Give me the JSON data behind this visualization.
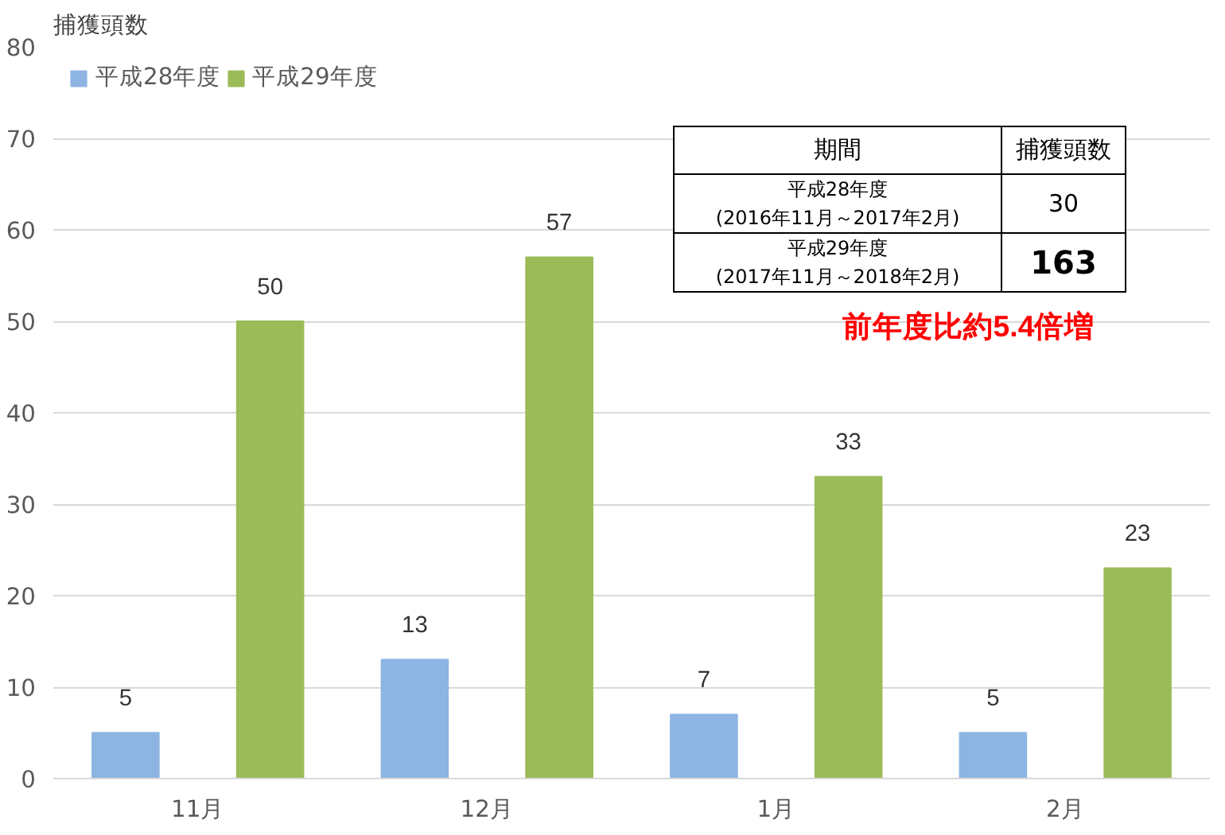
{
  "chart_data": {
    "type": "bar",
    "ylabel": "捕獲頭数",
    "categories": [
      "11月",
      "12月",
      "1月",
      "2月"
    ],
    "series": [
      {
        "name": "平成28年度",
        "color": "#8db4e2",
        "values": [
          5,
          13,
          7,
          5
        ]
      },
      {
        "name": "平成29年度",
        "color": "#9bbb59",
        "values": [
          50,
          57,
          33,
          23
        ]
      }
    ],
    "ylim": [
      0,
      80
    ],
    "yticks": [
      0,
      10,
      20,
      30,
      40,
      50,
      60,
      70,
      80
    ],
    "grid": "y",
    "legend": "top left",
    "data_labels": true,
    "annotations": [
      "期間",
      "捕獲頭数",
      "平成28年度\n(2016年11月～2017年2月)",
      "30",
      "平成29年度\n(2017年11月～2018年2月)",
      "163",
      "前年度比約5.4倍増"
    ]
  }
}
